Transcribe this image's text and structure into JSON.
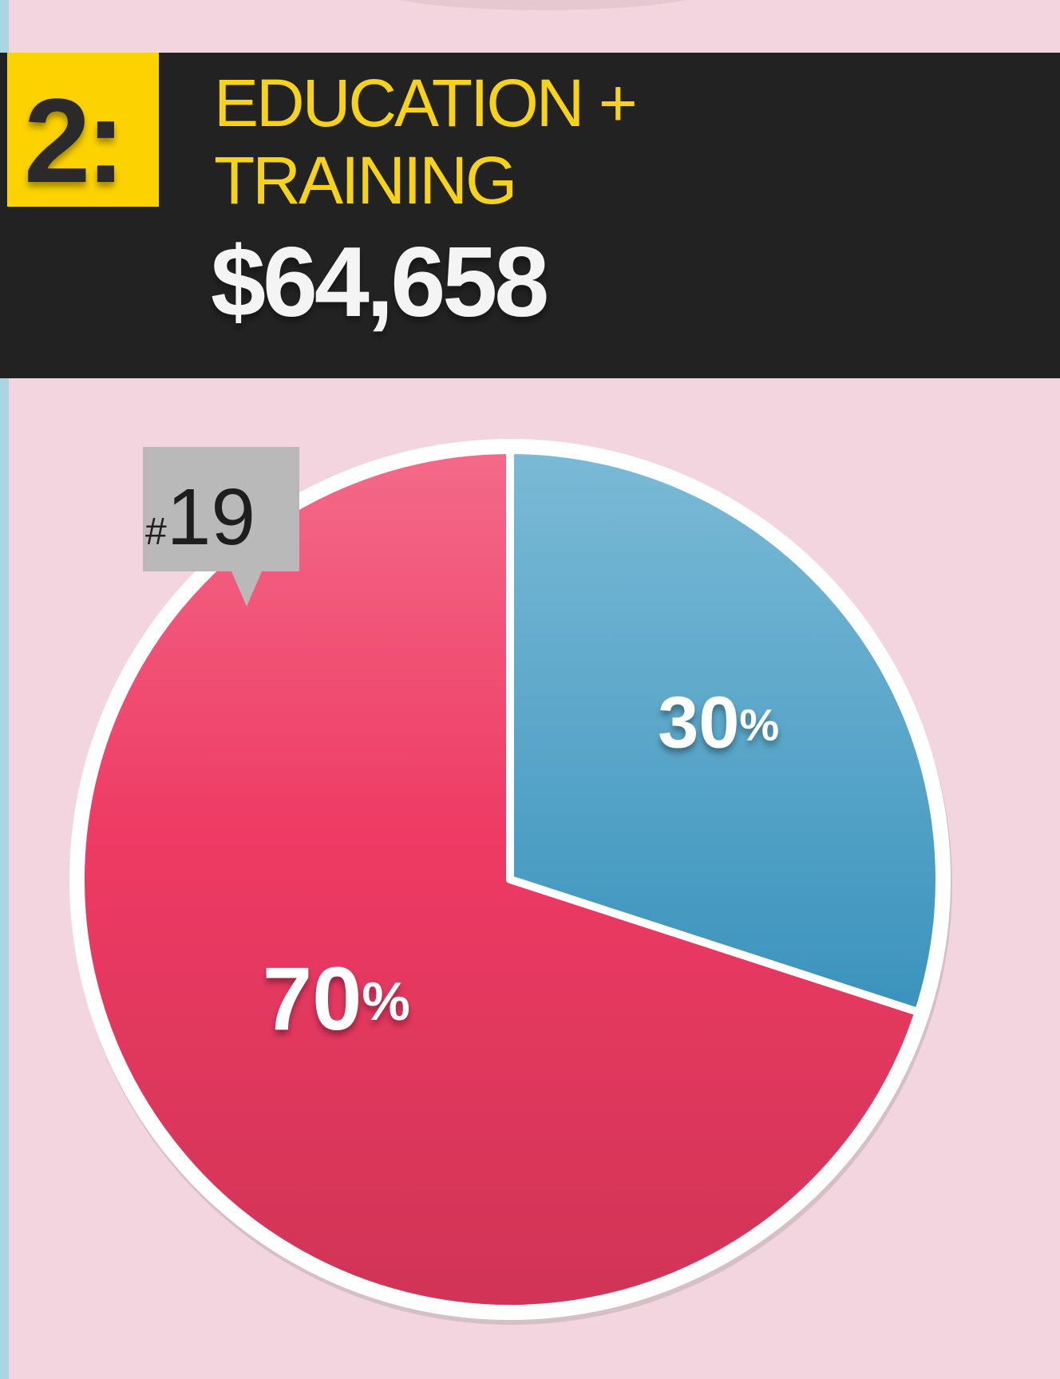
{
  "chart_data": {
    "type": "pie",
    "rank": "2:",
    "title": [
      "EDUCATION +",
      "TRAINING"
    ],
    "amount": "$64,658",
    "badge": "#19",
    "values": [
      30,
      70
    ],
    "value_labels": [
      "30%",
      "70%"
    ],
    "colors": [
      "#4ea5c9",
      "#e83c63"
    ]
  }
}
